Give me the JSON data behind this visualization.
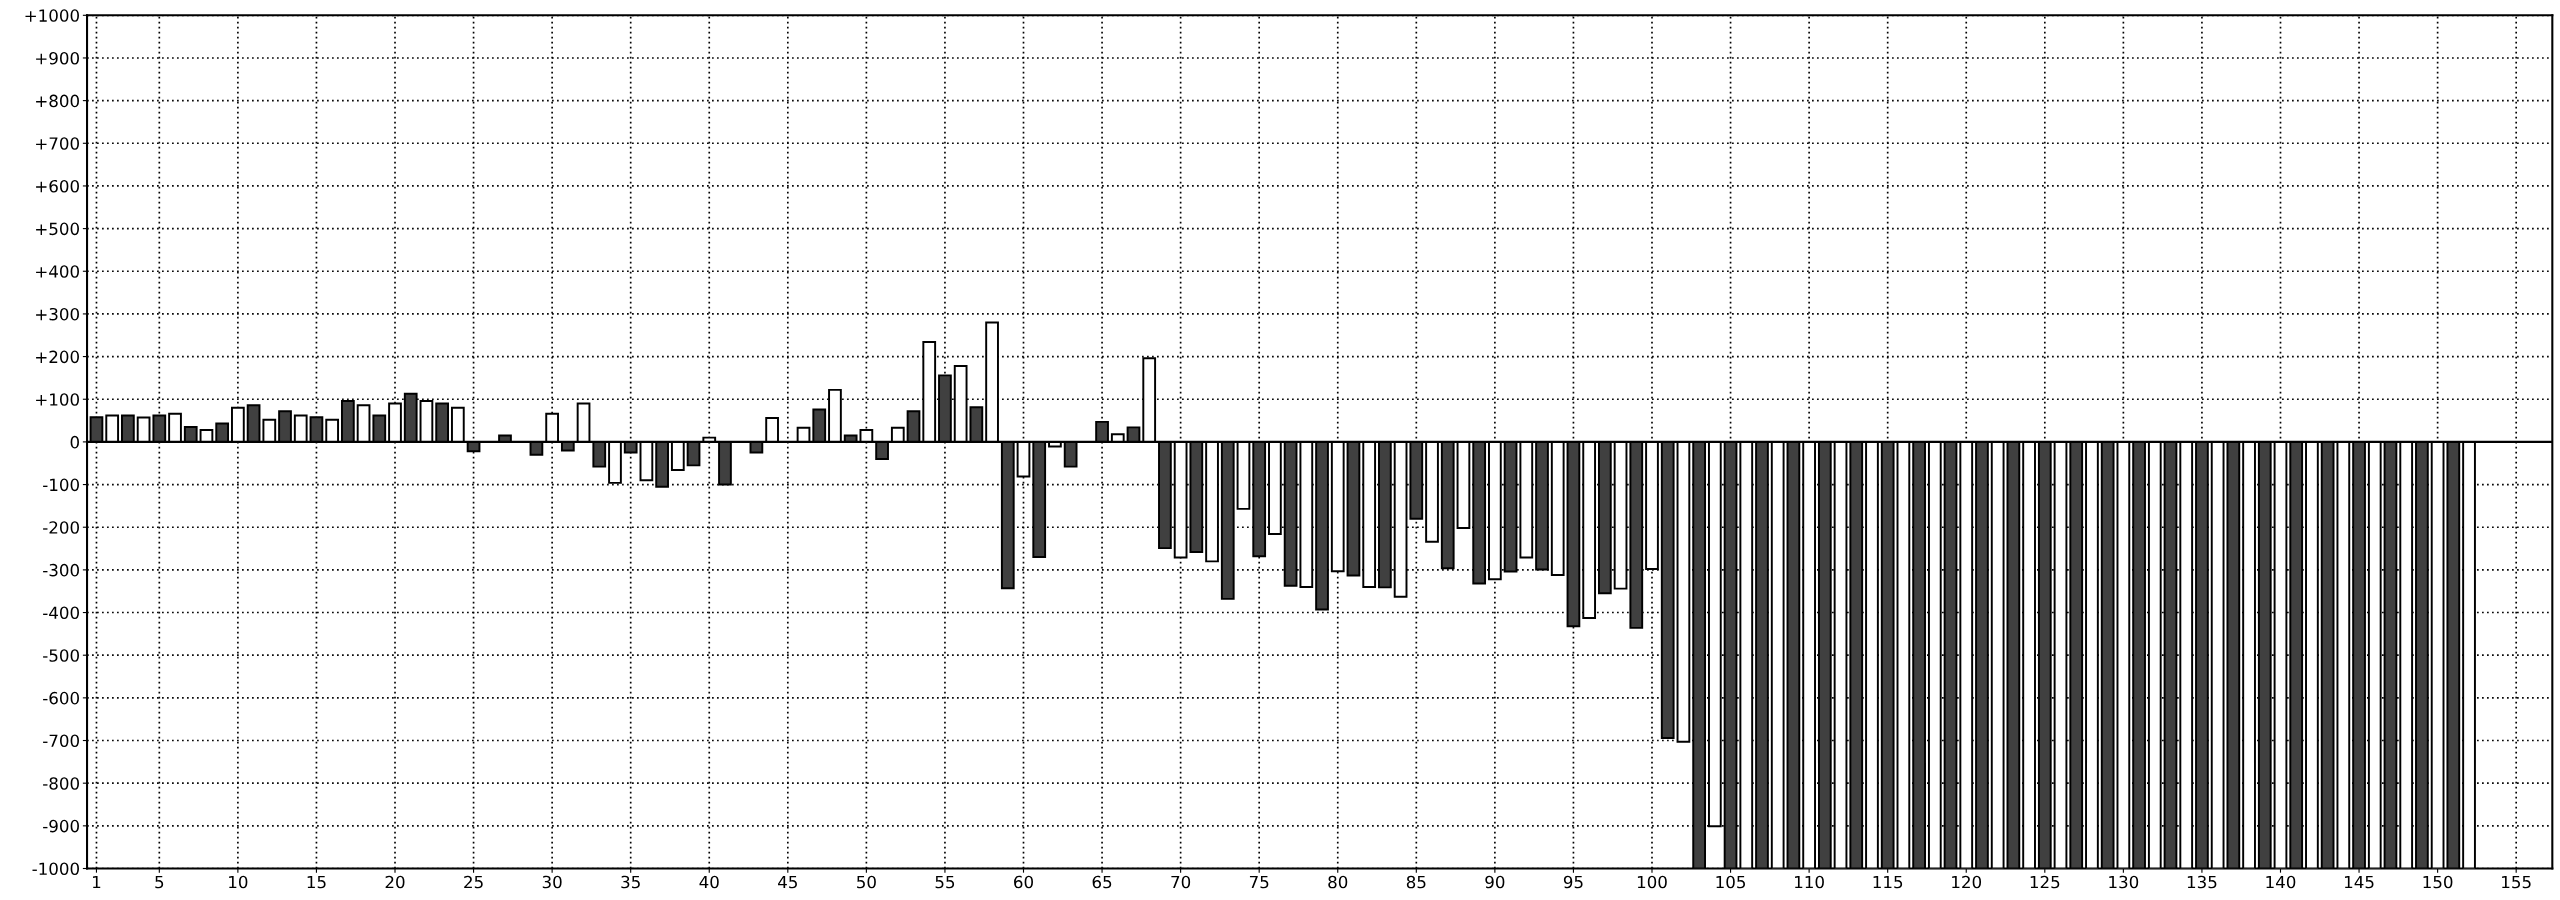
{
  "chart_data": {
    "type": "bar",
    "xlim": [
      0.4,
      157.3
    ],
    "xticks": [
      1,
      5,
      10,
      15,
      20,
      25,
      30,
      35,
      40,
      45,
      50,
      55,
      60,
      65,
      70,
      75,
      80,
      85,
      90,
      95,
      100,
      105,
      110,
      115,
      120,
      125,
      130,
      135,
      140,
      145,
      150,
      155
    ],
    "ylim": [
      -1000,
      1000
    ],
    "yticks": [
      {
        "value": -1000,
        "label": "-1000"
      },
      {
        "value": -900,
        "label": "-900"
      },
      {
        "value": -800,
        "label": "-800"
      },
      {
        "value": -700,
        "label": "-700"
      },
      {
        "value": -600,
        "label": "-600"
      },
      {
        "value": -500,
        "label": "-500"
      },
      {
        "value": -400,
        "label": "-400"
      },
      {
        "value": -300,
        "label": "-300"
      },
      {
        "value": -200,
        "label": "-200"
      },
      {
        "value": -100,
        "label": "-100"
      },
      0,
      {
        "value": 100,
        "label": "+100"
      },
      {
        "value": 200,
        "label": "+200"
      },
      {
        "value": 300,
        "label": "+300"
      },
      {
        "value": 400,
        "label": "+400"
      },
      {
        "value": 500,
        "label": "+500"
      },
      {
        "value": 600,
        "label": "+600"
      },
      {
        "value": 700,
        "label": "+700"
      },
      {
        "value": 800,
        "label": "+800"
      },
      {
        "value": 900,
        "label": "+900"
      },
      {
        "value": 1000,
        "label": "+1000"
      }
    ],
    "grid": true,
    "series": [
      {
        "color": "#404040",
        "x": [
          1,
          3,
          5,
          7,
          9,
          11,
          13,
          15,
          17,
          19,
          21,
          23,
          25,
          27,
          29,
          31,
          33,
          35,
          37,
          39,
          41,
          43,
          45,
          47,
          49,
          51,
          53,
          55,
          57,
          59,
          61,
          63,
          65,
          67,
          69,
          71,
          73,
          75,
          77,
          79,
          81,
          83,
          85,
          87,
          89,
          91,
          93,
          95,
          97,
          99,
          101,
          103,
          105,
          107,
          109,
          111,
          113,
          115,
          117,
          119,
          121,
          123,
          125,
          127,
          129,
          131,
          133,
          135,
          137,
          139,
          141,
          143,
          145,
          147,
          149,
          151
        ],
        "values": [
          58,
          62,
          62,
          35,
          43,
          86,
          72,
          58,
          96,
          62,
          113,
          90,
          -22,
          15,
          -30,
          -20,
          -58,
          -25,
          -105,
          -55,
          -100,
          -25,
          null,
          76,
          15,
          -40,
          72,
          156,
          81,
          -343,
          -270,
          -58,
          47,
          34,
          -249,
          -258,
          -368,
          -268,
          -337,
          -393,
          -313,
          -341,
          -180,
          -296,
          -332,
          -304,
          -299,
          -432,
          -355,
          -436,
          -694,
          -1000,
          -1000,
          -1000,
          -1000,
          -1000,
          -1000,
          -1000,
          -1000,
          -1000,
          -1000,
          -1000,
          -1000,
          -1000,
          -1000,
          -1000,
          -1000,
          -1000,
          -1000,
          -1000,
          -1000,
          -1000,
          -1000,
          -1000,
          -1000,
          -1000
        ]
      },
      {
        "color": "#ffffff",
        "x": [
          2,
          4,
          6,
          8,
          10,
          12,
          14,
          16,
          18,
          20,
          22,
          24,
          26,
          28,
          30,
          32,
          34,
          36,
          38,
          40,
          42,
          44,
          46,
          48,
          50,
          52,
          54,
          56,
          58,
          60,
          62,
          64,
          66,
          68,
          70,
          72,
          74,
          76,
          78,
          80,
          82,
          84,
          86,
          88,
          90,
          92,
          94,
          96,
          98,
          100,
          102,
          104,
          106,
          108,
          110,
          112,
          114,
          116,
          118,
          120,
          122,
          124,
          126,
          128,
          130,
          132,
          134,
          136,
          138,
          140,
          142,
          144,
          146,
          148,
          150,
          152
        ],
        "values": [
          62,
          57,
          66,
          28,
          80,
          52,
          62,
          52,
          86,
          90,
          96,
          80,
          null,
          null,
          66,
          90,
          -96,
          -90,
          -66,
          10,
          null,
          56,
          33,
          122,
          28,
          33,
          234,
          178,
          280,
          -81,
          -11,
          null,
          18,
          196,
          -271,
          -280,
          -157,
          -216,
          -340,
          -303,
          -340,
          -363,
          -234,
          -202,
          -322,
          -271,
          -312,
          -413,
          -344,
          -298,
          -703,
          -901,
          -1000,
          -1000,
          -1000,
          -1000,
          -1000,
          -1000,
          -1000,
          -1000,
          -1000,
          -1000,
          -1000,
          -1000,
          -1000,
          -1000,
          -1000,
          -1000,
          -1000,
          -1000,
          -1000,
          -1000,
          -1000,
          -1000,
          -1000,
          -1000
        ]
      }
    ]
  }
}
